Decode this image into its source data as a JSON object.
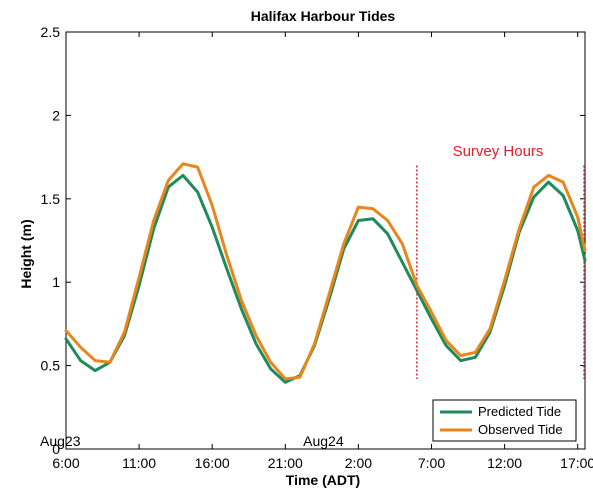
{
  "chart_data": {
    "type": "line",
    "title": "Halifax Harbour Tides",
    "xlabel": "Time (ADT)",
    "ylabel": "Height (m)",
    "xlim": [
      6,
      41.5
    ],
    "ylim": [
      0,
      2.5
    ],
    "x_ticks": [
      {
        "value": 6,
        "label": "6:00"
      },
      {
        "value": 11,
        "label": "11:00"
      },
      {
        "value": 16,
        "label": "16:00"
      },
      {
        "value": 21,
        "label": "21:00"
      },
      {
        "value": 26,
        "label": "2:00"
      },
      {
        "value": 31,
        "label": "7:00"
      },
      {
        "value": 36,
        "label": "12:00"
      },
      {
        "value": 41,
        "label": "17:00"
      }
    ],
    "y_ticks": [
      {
        "value": 0,
        "label": "0"
      },
      {
        "value": 0.5,
        "label": "0.5"
      },
      {
        "value": 1,
        "label": "1"
      },
      {
        "value": 1.5,
        "label": "1.5"
      },
      {
        "value": 2,
        "label": "2"
      },
      {
        "value": 2.5,
        "label": "2.5"
      }
    ],
    "date_labels": [
      {
        "x": 6,
        "label": "Aug23"
      },
      {
        "x": 24,
        "label": "Aug24"
      }
    ],
    "annotations": [
      {
        "text": "Survey Hours"
      }
    ],
    "survey_lines": [
      30,
      41.5
    ],
    "survey_line_range": [
      0.42,
      1.7
    ],
    "legend_position": "bottom-right",
    "grid": false,
    "series": [
      {
        "name": "Predicted Tide",
        "color": "#1f8a5a",
        "x": [
          6,
          7,
          8,
          9,
          10,
          11,
          12,
          13,
          14,
          15,
          16,
          17,
          18,
          19,
          20,
          21,
          22,
          23,
          24,
          25,
          26,
          27,
          28,
          29,
          30,
          31,
          32,
          33,
          34,
          35,
          36,
          37,
          38,
          39,
          40,
          41,
          41.5
        ],
        "y": [
          0.66,
          0.53,
          0.47,
          0.52,
          0.68,
          0.98,
          1.32,
          1.57,
          1.64,
          1.54,
          1.33,
          1.08,
          0.84,
          0.63,
          0.48,
          0.4,
          0.44,
          0.62,
          0.9,
          1.2,
          1.37,
          1.38,
          1.29,
          1.12,
          0.95,
          0.78,
          0.62,
          0.53,
          0.55,
          0.7,
          0.98,
          1.3,
          1.51,
          1.6,
          1.52,
          1.31,
          1.13
        ]
      },
      {
        "name": "Observed Tide",
        "color": "#e8861b",
        "x": [
          6,
          7,
          8,
          9,
          10,
          11,
          12,
          13,
          14,
          15,
          16,
          17,
          18,
          19,
          20,
          21,
          22,
          23,
          24,
          25,
          26,
          27,
          28,
          29,
          30,
          31,
          32,
          33,
          34,
          35,
          36,
          37,
          38,
          39,
          40,
          41,
          41.5
        ],
        "y": [
          0.71,
          0.61,
          0.53,
          0.52,
          0.7,
          1.03,
          1.37,
          1.61,
          1.71,
          1.69,
          1.46,
          1.16,
          0.89,
          0.68,
          0.52,
          0.42,
          0.43,
          0.63,
          0.93,
          1.23,
          1.45,
          1.44,
          1.37,
          1.23,
          0.98,
          0.82,
          0.65,
          0.56,
          0.58,
          0.72,
          1.01,
          1.32,
          1.57,
          1.64,
          1.6,
          1.39,
          1.19
        ]
      }
    ]
  }
}
